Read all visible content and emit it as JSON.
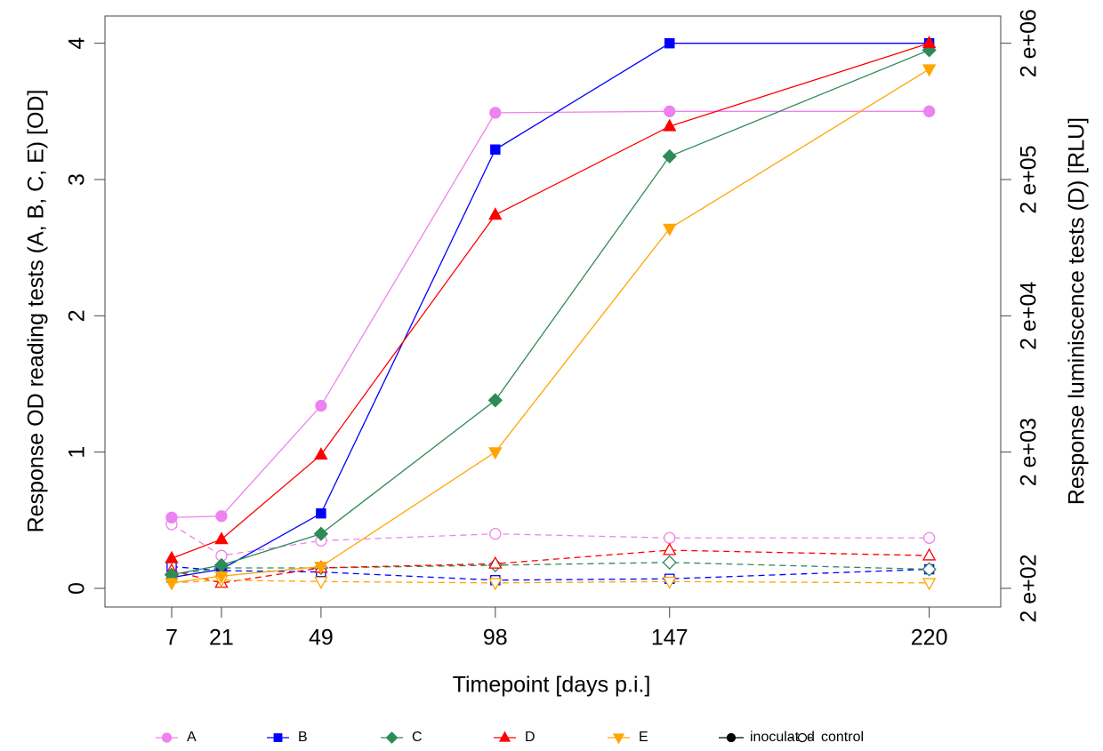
{
  "chart_data": {
    "type": "line",
    "x_label": "Timepoint [days p.i.]",
    "y_label": "Response OD reading tests (A, B, C, E) [OD]",
    "y2_label": "Response luminiscence tests (D) [RLU]",
    "x": [
      7,
      21,
      49,
      98,
      147,
      220
    ],
    "xlim": [
      -11.75,
      240.1
    ],
    "xticks": [
      7,
      21,
      49,
      98,
      147,
      220
    ],
    "ylim": [
      -0.137,
      4.2
    ],
    "yticks": [
      0,
      1,
      2,
      3,
      4
    ],
    "y2_log": true,
    "y2lim": [
      145.9,
      3170000
    ],
    "y2ticks": [
      {
        "value": 200,
        "label": "2 e+02"
      },
      {
        "value": 2000,
        "label": "2 e+03"
      },
      {
        "value": 20000,
        "label": "2 e+04"
      },
      {
        "value": 200000,
        "label": "2 e+05"
      },
      {
        "value": 2000000,
        "label": "2 e+06"
      }
    ],
    "legend_styles": [
      {
        "name": "inoculated",
        "dashed": false,
        "filled": true
      },
      {
        "name": "control",
        "dashed": true,
        "filled": false
      }
    ],
    "series": [
      {
        "name": "A",
        "color": "#ee82ee",
        "marker": "circle",
        "axis": "y",
        "values": [
          0.52,
          0.53,
          1.34,
          3.49,
          3.5,
          3.5
        ],
        "control_values": [
          0.47,
          0.24,
          0.35,
          0.4,
          0.37,
          0.37
        ]
      },
      {
        "name": "B",
        "color": "#0000ff",
        "marker": "square",
        "axis": "y",
        "values": [
          0.08,
          0.14,
          0.55,
          3.22,
          4.0,
          4.0
        ],
        "control_values": [
          0.16,
          0.13,
          0.12,
          0.06,
          0.07,
          0.14
        ]
      },
      {
        "name": "C",
        "color": "#2e8b57",
        "marker": "diamond",
        "axis": "y",
        "values": [
          0.1,
          0.17,
          0.4,
          1.38,
          3.17,
          3.95
        ],
        "control_values": [
          0.1,
          0.15,
          0.15,
          0.17,
          0.19,
          0.14
        ]
      },
      {
        "name": "D",
        "color": "#ff0000",
        "marker": "triangle-up",
        "axis": "y2",
        "values": [
          332,
          458,
          1910,
          110000,
          491000,
          2000000
        ],
        "control_values": [
          270,
          219,
          283,
          303,
          381,
          348
        ]
      },
      {
        "name": "E",
        "color": "#ffa500",
        "marker": "triangle-down",
        "axis": "y",
        "values": [
          0.04,
          0.09,
          0.16,
          1.0,
          2.64,
          3.81
        ],
        "control_values": [
          0.04,
          0.06,
          0.05,
          0.04,
          0.05,
          0.04
        ]
      }
    ]
  }
}
